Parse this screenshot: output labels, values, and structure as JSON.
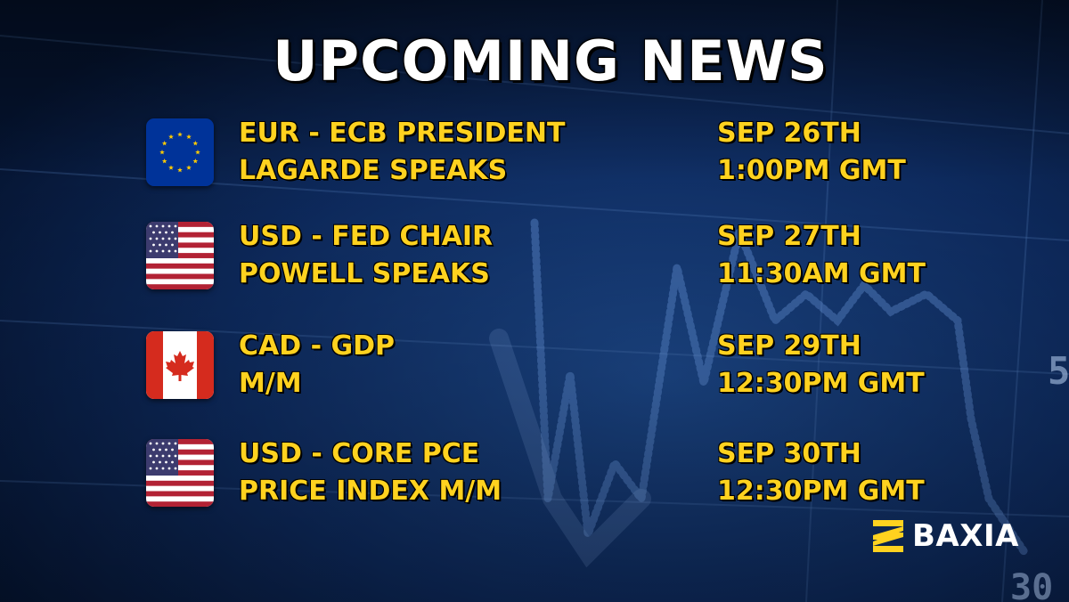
{
  "title": "UPCOMING NEWS",
  "events": [
    {
      "flag": "eu-flag-icon",
      "line1": "EUR - ECB PRESIDENT",
      "line2": "LAGARDE SPEAKS",
      "date": "SEP 26TH",
      "time": "1:00PM GMT"
    },
    {
      "flag": "us-flag-icon",
      "line1": "USD - FED CHAIR",
      "line2": "POWELL SPEAKS",
      "date": "SEP 27TH",
      "time": "11:30AM GMT"
    },
    {
      "flag": "canada-flag-icon",
      "line1": "CAD - GDP",
      "line2": "M/M",
      "date": "SEP 29TH",
      "time": "12:30PM GMT"
    },
    {
      "flag": "us-flag-icon",
      "line1": "USD - CORE PCE",
      "line2": "PRICE INDEX M/M",
      "date": "SEP 30TH",
      "time": "12:30PM GMT"
    }
  ],
  "background_axis_labels": [
    "5",
    "30"
  ],
  "brand": {
    "name": "BAXIA",
    "logo_icon": "baxia-logo-icon"
  },
  "colors": {
    "background": "#06183a",
    "title": "#ffffff",
    "event_text": "#ffd21f",
    "brand_mark": "#ffd21f",
    "eu_blue": "#003399",
    "eu_star": "#ffcc00",
    "us_red": "#b22234",
    "us_blue": "#3c3b6e",
    "ca_red": "#d52b1e"
  }
}
